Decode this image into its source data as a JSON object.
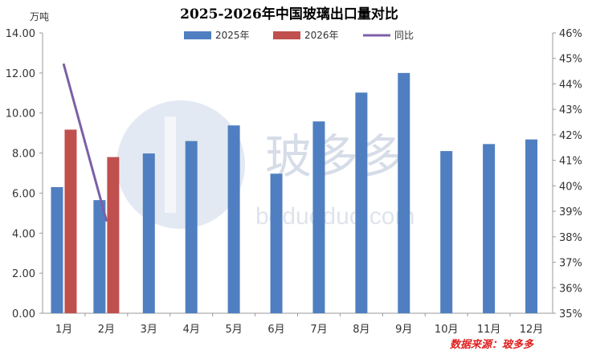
{
  "chart_data": {
    "type": "bar",
    "title": "2025-2026年中国玻璃出口量对比",
    "y_unit": "万吨",
    "categories": [
      "1月",
      "2月",
      "3月",
      "4月",
      "5月",
      "6月",
      "7月",
      "8月",
      "9月",
      "10月",
      "11月",
      "12月"
    ],
    "series": [
      {
        "name": "2025年",
        "type": "bar",
        "axis": "left",
        "color": "#4f7fc1",
        "values": [
          6.3,
          5.65,
          7.98,
          8.6,
          9.38,
          6.97,
          9.58,
          11.02,
          12.0,
          8.1,
          8.45,
          8.68
        ]
      },
      {
        "name": "2026年",
        "type": "bar",
        "axis": "left",
        "color": "#c0504d",
        "values": [
          9.17,
          7.8,
          null,
          null,
          null,
          null,
          null,
          null,
          null,
          null,
          null,
          null
        ]
      },
      {
        "name": "同比",
        "type": "line",
        "axis": "right",
        "color": "#7b60a6",
        "values": [
          0.4475,
          0.3865,
          null,
          null,
          null,
          null,
          null,
          null,
          null,
          null,
          null,
          null
        ]
      }
    ],
    "y_left": {
      "min": 0,
      "max": 14,
      "step": 2,
      "ticks": [
        "0.00",
        "2.00",
        "4.00",
        "6.00",
        "8.00",
        "10.00",
        "12.00",
        "14.00"
      ]
    },
    "y_right": {
      "min": 0.35,
      "max": 0.46,
      "step": 0.01,
      "ticks": [
        "35%",
        "36%",
        "37%",
        "38%",
        "39%",
        "40%",
        "41%",
        "42%",
        "43%",
        "44%",
        "45%",
        "46%"
      ]
    },
    "legend_position": "top-center",
    "grid": false
  },
  "watermark": {
    "text": "玻多多",
    "url": "boduoduo.com"
  },
  "source_note": "数据来源：玻多多"
}
